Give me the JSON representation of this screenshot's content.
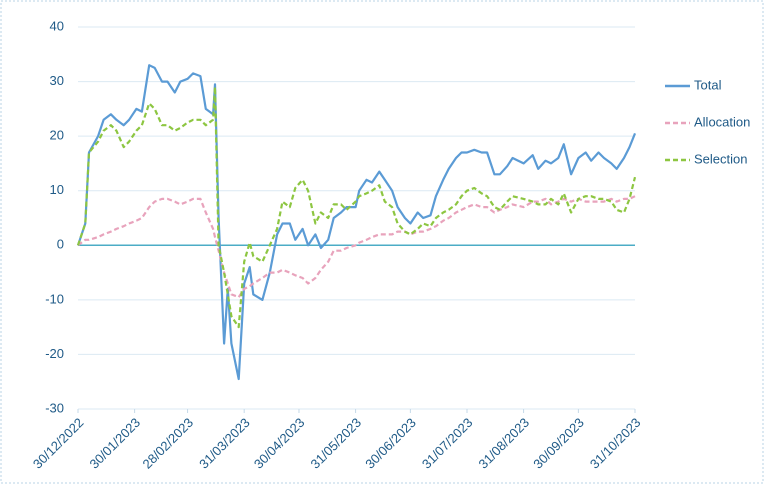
{
  "chart_data": {
    "type": "line",
    "x": [
      "30/12/2022",
      "03/01/2023",
      "05/01/2023",
      "10/01/2023",
      "13/01/2023",
      "17/01/2023",
      "20/01/2023",
      "24/01/2023",
      "27/01/2023",
      "31/01/2023",
      "03/02/2023",
      "07/02/2023",
      "10/02/2023",
      "14/02/2023",
      "17/02/2023",
      "21/02/2023",
      "24/02/2023",
      "28/02/2023",
      "03/03/2023",
      "07/03/2023",
      "10/03/2023",
      "14/03/2023",
      "15/03/2023",
      "17/03/2023",
      "20/03/2023",
      "22/03/2023",
      "24/03/2023",
      "28/03/2023",
      "31/03/2023",
      "03/04/2023",
      "05/04/2023",
      "10/04/2023",
      "14/04/2023",
      "18/04/2023",
      "21/04/2023",
      "25/04/2023",
      "28/04/2023",
      "02/05/2023",
      "05/05/2023",
      "09/05/2023",
      "12/05/2023",
      "16/05/2023",
      "19/05/2023",
      "23/05/2023",
      "26/05/2023",
      "31/05/2023",
      "02/06/2023",
      "06/06/2023",
      "09/06/2023",
      "13/06/2023",
      "16/06/2023",
      "20/06/2023",
      "23/06/2023",
      "27/06/2023",
      "30/06/2023",
      "04/07/2023",
      "07/07/2023",
      "11/07/2023",
      "14/07/2023",
      "18/07/2023",
      "21/07/2023",
      "25/07/2023",
      "28/07/2023",
      "31/07/2023",
      "04/08/2023",
      "08/08/2023",
      "11/08/2023",
      "15/08/2023",
      "18/08/2023",
      "22/08/2023",
      "25/08/2023",
      "31/08/2023",
      "05/09/2023",
      "08/09/2023",
      "12/09/2023",
      "15/09/2023",
      "19/09/2023",
      "22/09/2023",
      "26/09/2023",
      "30/09/2023",
      "04/10/2023",
      "07/10/2023",
      "11/10/2023",
      "14/10/2023",
      "18/10/2023",
      "21/10/2023",
      "25/10/2023",
      "28/10/2023",
      "31/10/2023"
    ],
    "series": [
      {
        "name": "Total",
        "color": "#5b9bd5",
        "dash": false,
        "values": [
          0,
          4,
          17,
          20,
          23,
          24,
          23,
          22,
          23,
          25,
          24.5,
          33,
          32.5,
          30,
          30,
          28,
          30,
          30.5,
          31.5,
          31,
          25,
          24,
          29.5,
          5,
          -18,
          -8,
          -18,
          -24.5,
          -7,
          -4,
          -9,
          -10,
          -5,
          2,
          4,
          4,
          1,
          3,
          0,
          2,
          -0.5,
          1,
          5,
          6,
          7,
          7,
          10,
          12,
          11.5,
          13.5,
          12,
          10,
          7,
          5,
          4,
          6,
          5,
          5.5,
          9,
          12,
          14,
          16,
          17,
          17,
          17.5,
          17,
          17,
          13,
          13,
          14.5,
          16,
          15,
          16.5,
          14,
          15.5,
          15,
          16,
          18.5,
          13,
          16,
          17,
          15.5,
          17,
          16,
          15,
          14,
          16,
          18,
          20.5
        ]
      },
      {
        "name": "Allocation",
        "color": "#e8a3bc",
        "dash": true,
        "values": [
          0,
          1,
          1,
          1.5,
          2,
          2.5,
          3,
          3.5,
          4,
          4.5,
          5,
          7,
          8,
          8.5,
          8.5,
          8,
          7.5,
          8,
          8.5,
          8.5,
          6,
          3,
          1.5,
          -1,
          -5,
          -7,
          -9,
          -9.5,
          -8,
          -7.5,
          -7,
          -6,
          -5,
          -5,
          -4.5,
          -5,
          -5.5,
          -6,
          -7,
          -6,
          -4.5,
          -3,
          -1,
          -1,
          -0.5,
          0,
          0.5,
          1,
          1.5,
          2,
          2,
          2,
          2.5,
          2.5,
          2,
          2.5,
          2.5,
          3,
          3.5,
          4.5,
          5,
          6,
          6.5,
          7,
          7.5,
          7,
          7,
          6,
          6.5,
          7,
          7.5,
          7,
          8,
          8,
          8.5,
          7.5,
          8,
          8.5,
          8,
          8.5,
          8,
          8,
          8,
          8,
          8.5,
          8,
          8.5,
          8.5,
          9
        ]
      },
      {
        "name": "Selection",
        "color": "#8dc641",
        "dash": true,
        "values": [
          0,
          4,
          17,
          19,
          21,
          22,
          21,
          18,
          19,
          21,
          22,
          26,
          25,
          22,
          22,
          21,
          21.5,
          22.5,
          23,
          23,
          22,
          23,
          29,
          0,
          -5,
          -9,
          -13,
          -15,
          -3,
          0.5,
          -2,
          -3,
          0,
          3,
          8,
          7,
          10.5,
          12,
          10,
          4,
          6,
          5,
          7.5,
          7.5,
          6.5,
          8,
          9,
          9.5,
          10,
          11,
          8,
          7,
          4,
          2.5,
          2,
          3,
          4,
          3.5,
          5,
          6,
          6.5,
          7.5,
          9,
          10,
          10.5,
          9.5,
          9,
          7,
          6.5,
          8,
          9,
          8.5,
          8,
          7.5,
          7.5,
          8.5,
          7.5,
          9.5,
          6,
          8.5,
          9,
          9,
          8.5,
          8.5,
          8,
          6.5,
          6,
          8.5,
          12.5
        ]
      }
    ],
    "xlim": [
      "30/12/2022",
      "31/10/2023"
    ],
    "xticks": [
      "30/12/2022",
      "30/01/2023",
      "28/02/2023",
      "31/03/2023",
      "30/04/2023",
      "31/05/2023",
      "30/06/2023",
      "31/07/2023",
      "31/08/2023",
      "30/09/2023",
      "31/10/2023"
    ],
    "ylim": [
      -30,
      40
    ],
    "yticks": [
      -30,
      -20,
      -10,
      0,
      10,
      20,
      30,
      40
    ],
    "grid": true,
    "legend": "right"
  }
}
